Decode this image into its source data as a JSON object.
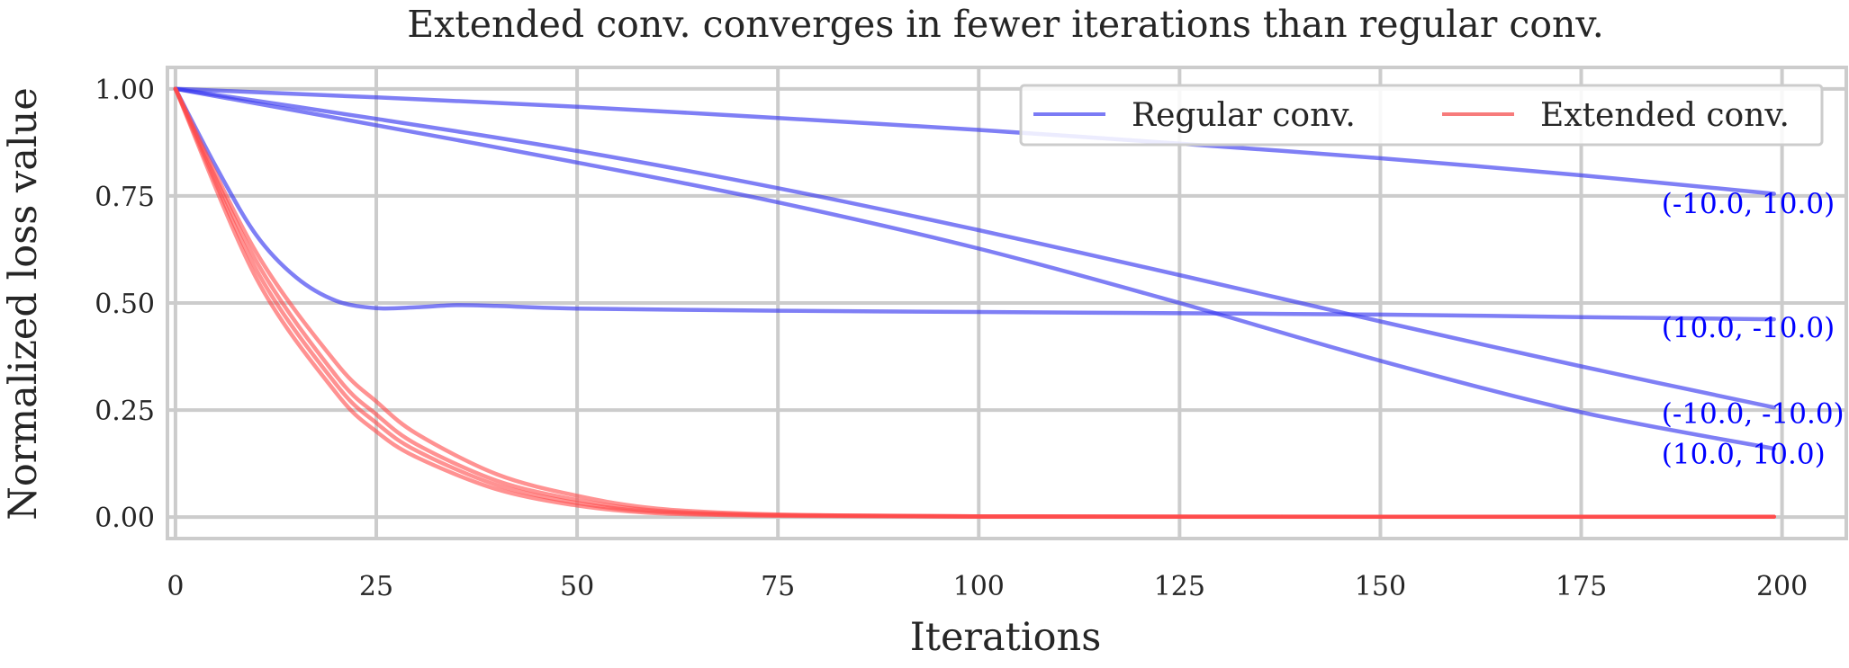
{
  "chart_data": {
    "type": "line",
    "title": "Extended conv. converges in fewer iterations than regular conv.",
    "xlabel": "Iterations",
    "ylabel": "Normalized loss value",
    "xlim": [
      -1,
      208
    ],
    "ylim": [
      -0.05,
      1.05
    ],
    "xticks": [
      0,
      25,
      50,
      75,
      100,
      125,
      150,
      175,
      200
    ],
    "yticks": [
      0.0,
      0.25,
      0.5,
      0.75,
      1.0
    ],
    "xtick_labels": [
      "0",
      "25",
      "50",
      "75",
      "100",
      "125",
      "150",
      "175",
      "200"
    ],
    "ytick_labels": [
      "0.00",
      "0.25",
      "0.50",
      "0.75",
      "1.00"
    ],
    "grid": true,
    "legend": {
      "placement": "top-right",
      "entries": [
        {
          "label": "Regular conv.",
          "color": "#7b7bf5"
        },
        {
          "label": "Extended conv.",
          "color": "#f77b7b"
        }
      ]
    },
    "colors": {
      "regular": "#7b7bf5",
      "extended": "#ff4a4a",
      "annotation": "#0000ff",
      "grid": "#cccccc"
    },
    "series": [
      {
        "group": "Regular conv.",
        "label": "(-10.0, 10.0)",
        "x": [
          0,
          25,
          50,
          75,
          100,
          125,
          150,
          175,
          199
        ],
        "y": [
          1.0,
          0.98,
          0.958,
          0.932,
          0.904,
          0.872,
          0.838,
          0.798,
          0.755
        ]
      },
      {
        "group": "Regular conv.",
        "label": "(10.0, -10.0)",
        "x": [
          0,
          5,
          10,
          15,
          20,
          25,
          30,
          35,
          40,
          50,
          75,
          100,
          125,
          150,
          175,
          199
        ],
        "y": [
          1.0,
          0.82,
          0.66,
          0.56,
          0.505,
          0.488,
          0.49,
          0.495,
          0.493,
          0.487,
          0.482,
          0.479,
          0.476,
          0.473,
          0.467,
          0.462
        ]
      },
      {
        "group": "Regular conv.",
        "label": "(-10.0, -10.0)",
        "x": [
          0,
          25,
          50,
          75,
          100,
          125,
          150,
          175,
          199
        ],
        "y": [
          1.0,
          0.93,
          0.855,
          0.768,
          0.67,
          0.565,
          0.457,
          0.352,
          0.256
        ]
      },
      {
        "group": "Regular conv.",
        "label": "(10.0, 10.0)",
        "x": [
          0,
          25,
          50,
          75,
          100,
          125,
          150,
          175,
          199
        ],
        "y": [
          1.0,
          0.915,
          0.828,
          0.735,
          0.627,
          0.5,
          0.365,
          0.245,
          0.16
        ]
      },
      {
        "group": "Extended conv.",
        "x": [
          0,
          10,
          20,
          25,
          30,
          40,
          50,
          60,
          75,
          100,
          150,
          199
        ],
        "y": [
          1.0,
          0.62,
          0.36,
          0.27,
          0.195,
          0.1,
          0.05,
          0.02,
          0.006,
          0.002,
          0.001,
          0.001
        ]
      },
      {
        "group": "Extended conv.",
        "x": [
          0,
          10,
          20,
          25,
          30,
          40,
          50,
          60,
          75,
          100,
          150,
          199
        ],
        "y": [
          1.0,
          0.6,
          0.33,
          0.24,
          0.17,
          0.085,
          0.04,
          0.015,
          0.005,
          0.002,
          0.001,
          0.001
        ]
      },
      {
        "group": "Extended conv.",
        "x": [
          0,
          10,
          20,
          25,
          30,
          40,
          50,
          60,
          75,
          100,
          150,
          199
        ],
        "y": [
          1.0,
          0.58,
          0.31,
          0.22,
          0.155,
          0.075,
          0.033,
          0.012,
          0.004,
          0.001,
          0.001,
          0.001
        ]
      },
      {
        "group": "Extended conv.",
        "x": [
          0,
          10,
          20,
          25,
          30,
          40,
          50,
          60,
          75,
          100,
          150,
          199
        ],
        "y": [
          1.0,
          0.56,
          0.29,
          0.2,
          0.14,
          0.065,
          0.027,
          0.009,
          0.003,
          0.001,
          0.001,
          0.001
        ]
      }
    ],
    "annotations": [
      {
        "text": "(-10.0, 10.0)",
        "x": 185,
        "y": 0.71
      },
      {
        "text": "(10.0, -10.0)",
        "x": 185,
        "y": 0.42
      },
      {
        "text": "(-10.0, -10.0)",
        "x": 185,
        "y": 0.22
      },
      {
        "text": "(10.0, 10.0)",
        "x": 185,
        "y": 0.125
      }
    ]
  }
}
